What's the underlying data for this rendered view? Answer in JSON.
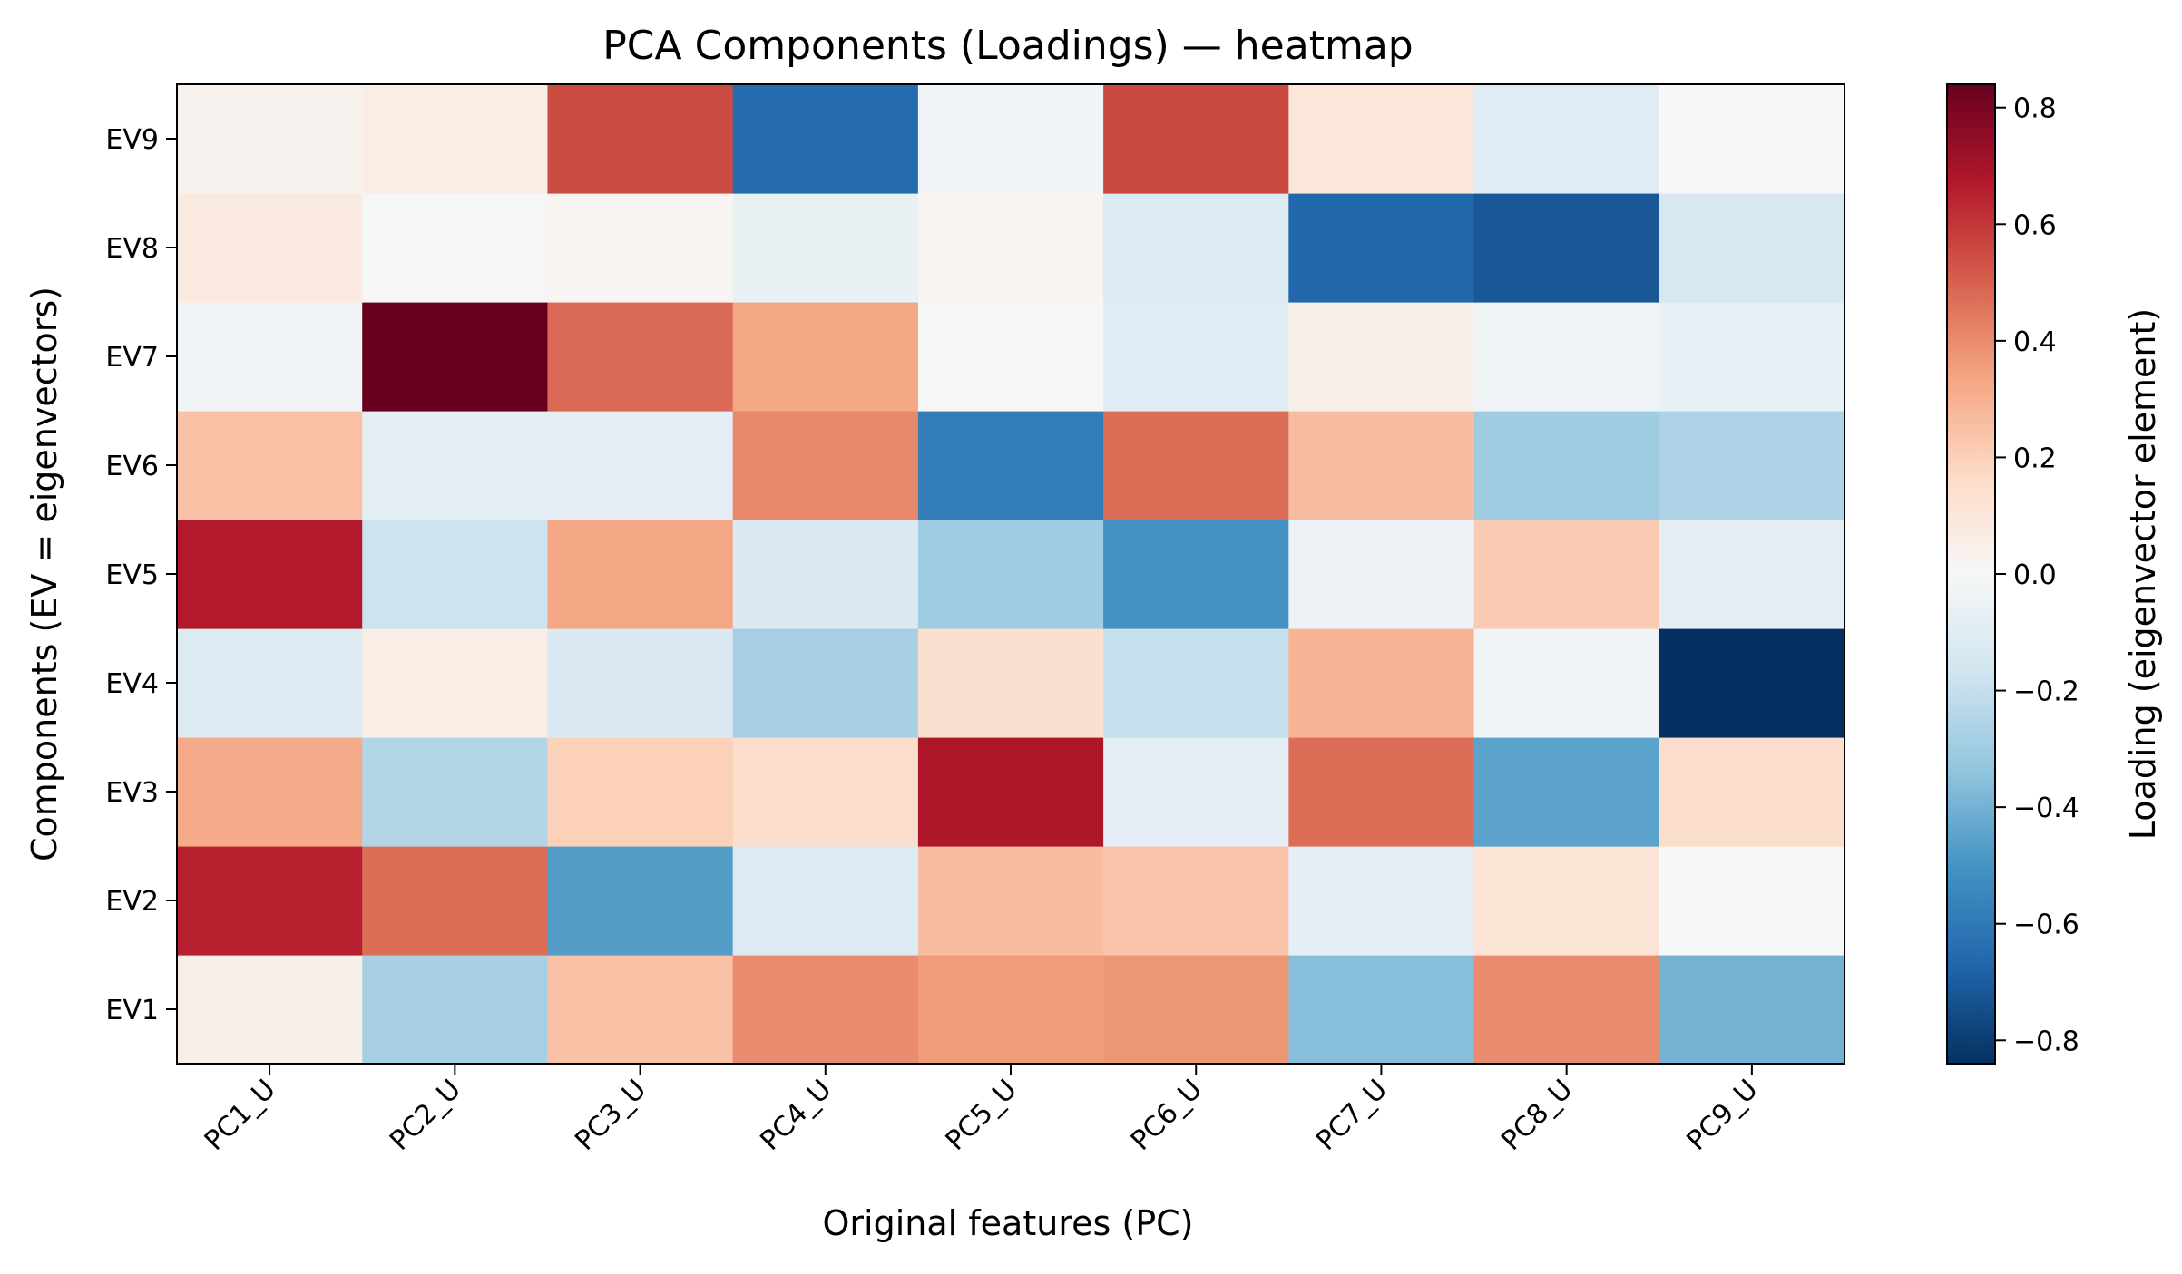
{
  "chart_data": {
    "type": "heatmap",
    "title": "PCA Components (Loadings) — heatmap",
    "xlabel": "Original features (PC)",
    "ylabel": "Components (EV = eigenvectors)",
    "colorbar_label": "Loading (eigenvector element)",
    "colormap": "RdBu_r",
    "vlim": [
      -0.84,
      0.84
    ],
    "colorbar_ticks": [
      -0.8,
      -0.6,
      -0.4,
      -0.2,
      0.0,
      0.2,
      0.4,
      0.6,
      0.8
    ],
    "colorbar_tick_labels": [
      "−0.8",
      "−0.6",
      "−0.4",
      "−0.2",
      "0.0",
      "0.2",
      "0.4",
      "0.6",
      "0.8"
    ],
    "x_categories": [
      "PC1_U",
      "PC2_U",
      "PC3_U",
      "PC4_U",
      "PC5_U",
      "PC6_U",
      "PC7_U",
      "PC8_U",
      "PC9_U"
    ],
    "y_categories": [
      "EV1",
      "EV2",
      "EV3",
      "EV4",
      "EV5",
      "EV6",
      "EV7",
      "EV8",
      "EV9"
    ],
    "values": [
      [
        0.05,
        -0.28,
        0.25,
        0.4,
        0.36,
        0.37,
        -0.36,
        0.4,
        -0.4
      ],
      [
        0.65,
        0.47,
        -0.47,
        -0.12,
        0.26,
        0.24,
        -0.08,
        0.12,
        0.0
      ],
      [
        0.32,
        -0.25,
        0.2,
        0.15,
        0.68,
        -0.08,
        0.47,
        -0.45,
        0.15
      ],
      [
        -0.12,
        0.06,
        -0.13,
        -0.28,
        0.14,
        -0.2,
        0.29,
        -0.03,
        -0.84
      ],
      [
        0.67,
        -0.18,
        0.33,
        -0.13,
        -0.3,
        -0.51,
        -0.05,
        0.22,
        -0.08
      ],
      [
        0.25,
        -0.08,
        -0.08,
        0.41,
        -0.59,
        0.47,
        0.26,
        -0.3,
        -0.26
      ],
      [
        -0.03,
        0.84,
        0.48,
        0.33,
        0.0,
        -0.1,
        0.05,
        -0.04,
        -0.07
      ],
      [
        0.08,
        -0.01,
        0.02,
        -0.06,
        0.02,
        -0.12,
        -0.67,
        -0.72,
        -0.14
      ],
      [
        0.03,
        0.06,
        0.55,
        -0.65,
        -0.03,
        0.56,
        0.1,
        -0.1,
        0.0
      ]
    ]
  }
}
